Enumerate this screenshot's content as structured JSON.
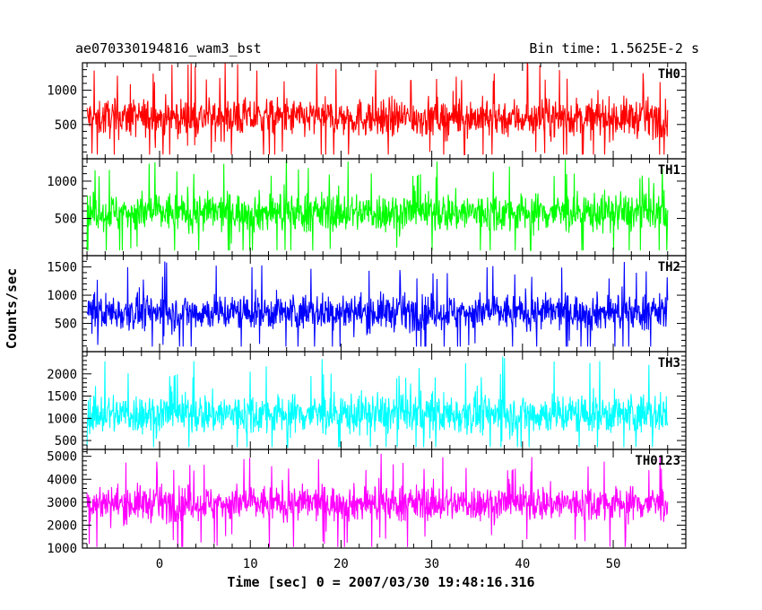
{
  "header": {
    "left_title": "ae070330194816_wam3_bst",
    "right_title": "Bin time: 1.5625E-2 s"
  },
  "chart_data": {
    "type": "line",
    "title": "ae070330194816_wam3_bst",
    "subtitle": "Bin time: 1.5625E-2 s",
    "xlabel": "Time [sec] 0 = 2007/03/30 19:48:16.316",
    "ylabel": "Counts/sec",
    "xlim": [
      -8.5,
      58
    ],
    "x_data_range": [
      -8,
      56
    ],
    "x_ticks": [
      0,
      10,
      20,
      30,
      40,
      50
    ],
    "grid": false,
    "legend": "none",
    "panels": [
      {
        "name": "TH0",
        "color": "#ff0000",
        "ylim": [
          0,
          1400
        ],
        "y_ticks": [
          500,
          1000
        ],
        "mean": 600,
        "spread": 200,
        "min": 60,
        "max": 1400
      },
      {
        "name": "TH1",
        "color": "#00ff00",
        "ylim": [
          0,
          1300
        ],
        "y_ticks": [
          500,
          1000
        ],
        "mean": 580,
        "spread": 190,
        "min": 70,
        "max": 1300
      },
      {
        "name": "TH2",
        "color": "#0000ff",
        "ylim": [
          0,
          1700
        ],
        "y_ticks": [
          500,
          1000,
          1500
        ],
        "mean": 700,
        "spread": 230,
        "min": 90,
        "max": 1700
      },
      {
        "name": "TH3",
        "color": "#00ffff",
        "ylim": [
          300,
          2500
        ],
        "y_ticks": [
          500,
          1000,
          1500,
          2000
        ],
        "mean": 1100,
        "spread": 330,
        "min": 350,
        "max": 2500
      },
      {
        "name": "TH0123",
        "color": "#ff00ff",
        "ylim": [
          1000,
          5300
        ],
        "y_ticks": [
          1000,
          2000,
          3000,
          4000,
          5000
        ],
        "mean": 2950,
        "spread": 560,
        "min": 1050,
        "max": 5300
      }
    ]
  }
}
